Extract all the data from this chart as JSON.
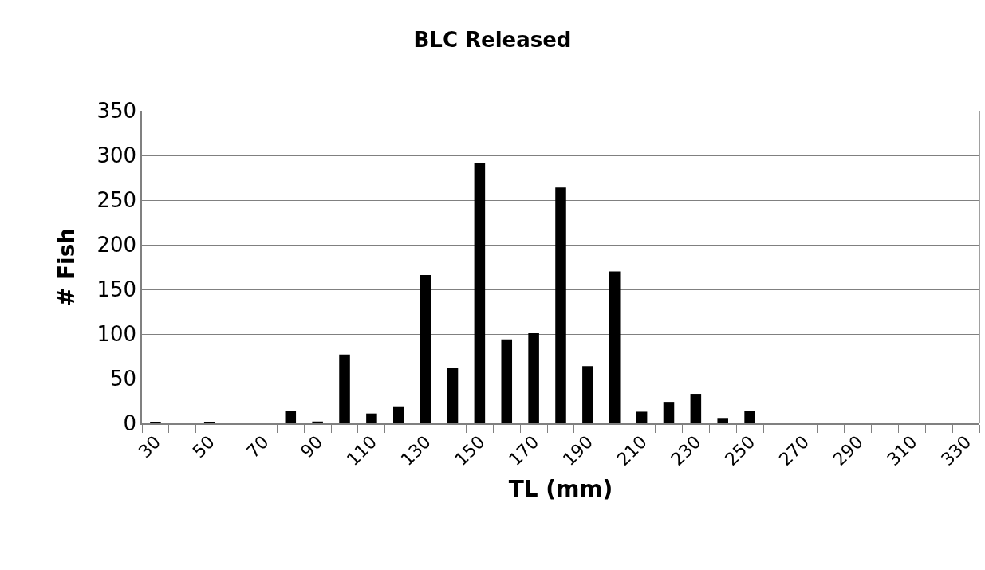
{
  "chart_data": {
    "type": "bar",
    "title": "BLC Released",
    "xlabel": "TL (mm)",
    "ylabel": "# Fish",
    "categories": [
      "30",
      null,
      "50",
      null,
      "70",
      null,
      "90",
      null,
      "110",
      null,
      "130",
      null,
      "150",
      null,
      "170",
      null,
      "190",
      null,
      "210",
      null,
      "230",
      null,
      "250",
      null,
      "270",
      null,
      "290",
      null,
      "310",
      null,
      "330"
    ],
    "values": [
      1,
      0,
      1,
      0,
      0,
      14,
      2,
      77,
      11,
      19,
      166,
      62,
      292,
      94,
      101,
      264,
      64,
      170,
      13,
      24,
      33,
      6,
      14,
      0,
      0,
      0,
      0,
      0,
      0,
      0,
      0
    ],
    "color": "#000000",
    "ylim": [
      0,
      350
    ],
    "yticks": [
      0,
      50,
      100,
      150,
      200,
      250,
      300,
      350
    ],
    "grid": "y"
  }
}
